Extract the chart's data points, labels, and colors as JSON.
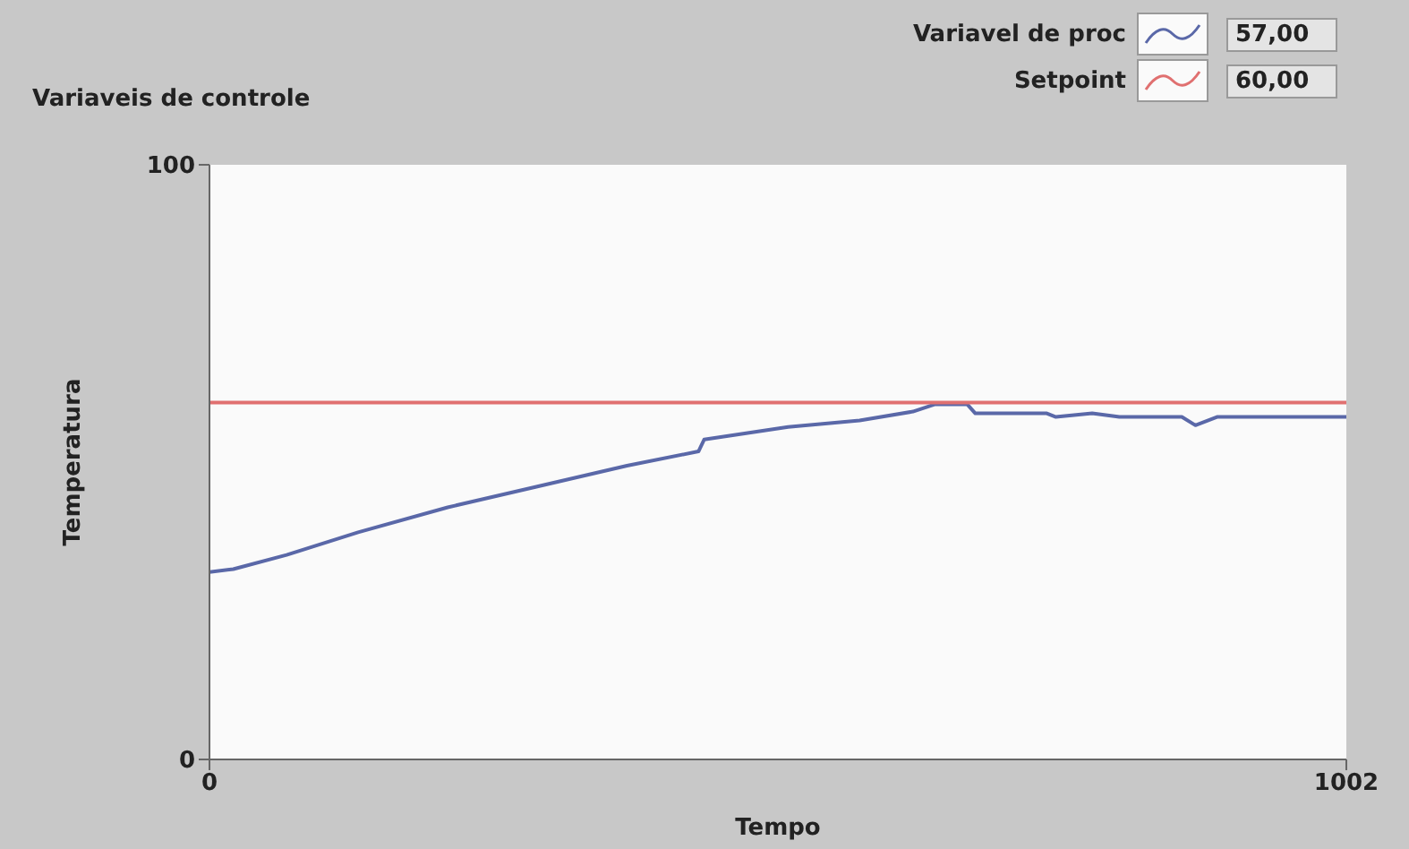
{
  "chart_data": {
    "type": "line",
    "title": "Variaveis de controle",
    "xlabel": "Tempo",
    "ylabel": "Temperatura",
    "series": [
      {
        "name": "Variavel de proc",
        "color": "#5a68a8",
        "x": [
          0,
          21,
          68,
          131,
          210,
          289,
          368,
          431,
          436,
          510,
          573,
          620,
          639,
          668,
          675,
          738,
          746,
          778,
          802,
          857,
          869,
          888,
          1002
        ],
        "values": [
          31.5,
          32,
          34.4,
          38.2,
          42.4,
          45.9,
          49.4,
          51.8,
          53.8,
          55.9,
          57,
          58.5,
          59.7,
          59.7,
          58.2,
          58.2,
          57.6,
          58.2,
          57.6,
          57.6,
          56.2,
          57.6,
          57.6
        ]
      },
      {
        "name": "Setpoint",
        "color": "#e07070",
        "x": [
          0,
          1002
        ],
        "values": [
          60,
          60
        ]
      }
    ],
    "annotations": [
      "57,00",
      "60,00"
    ],
    "xlim": [
      0,
      1002
    ],
    "xticks": [
      0,
      1002
    ],
    "ylim": [
      0,
      100
    ],
    "yticks": [
      0,
      100
    ],
    "legend": "top right",
    "marker": "none",
    "line_style": "solid"
  }
}
